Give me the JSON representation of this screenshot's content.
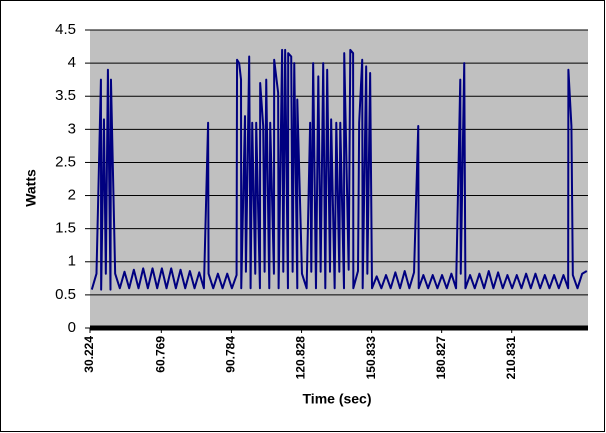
{
  "chart_data": {
    "type": "line",
    "xlabel": "Time (sec)",
    "ylabel": "Watts",
    "x": [
      31,
      33,
      34.9,
      35,
      36.2,
      37,
      37.9,
      39,
      39.2,
      41,
      43,
      45,
      47,
      49,
      51,
      53,
      55,
      57,
      59,
      61,
      63,
      65,
      67,
      69,
      71,
      73,
      75,
      77,
      79,
      80.8,
      81,
      83,
      85,
      87,
      89,
      91,
      93,
      93.2,
      94.1,
      94.9,
      95,
      96.6,
      97,
      98.4,
      99,
      99.7,
      101,
      101.4,
      103,
      103.1,
      104.4,
      105,
      105.7,
      107,
      107.4,
      109,
      109.1,
      110.8,
      111,
      112.5,
      113,
      113.8,
      115,
      115.1,
      116.4,
      117,
      117.7,
      119,
      119.0,
      121,
      123,
      124.5,
      125,
      125.8,
      127,
      128.0,
      129,
      130.1,
      131,
      131.8,
      133,
      133.5,
      135,
      135.7,
      137,
      137.4,
      139,
      139.1,
      141,
      141.7,
      142.9,
      143,
      145,
      145.5,
      146.8,
      147,
      148.5,
      149,
      150.2,
      151,
      153,
      155,
      157,
      159,
      161,
      163,
      165,
      167,
      169,
      170.8,
      171,
      173,
      175,
      177,
      179,
      181,
      183,
      185,
      187,
      188.8,
      189,
      190.5,
      191,
      193,
      195,
      197,
      199,
      201,
      203,
      205,
      207,
      209,
      211,
      213,
      215,
      217,
      219,
      221,
      223,
      225,
      227,
      229,
      231,
      233,
      235,
      235.1,
      236.4,
      237,
      239,
      241,
      243
    ],
    "series": [
      {
        "name": "Watts",
        "color": "#000080",
        "values": [
          0.58,
          0.82,
          3.75,
          0.58,
          3.15,
          0.82,
          3.9,
          0.58,
          3.75,
          0.82,
          0.6,
          0.85,
          0.6,
          0.88,
          0.6,
          0.9,
          0.6,
          0.9,
          0.6,
          0.9,
          0.6,
          0.9,
          0.6,
          0.88,
          0.6,
          0.86,
          0.6,
          0.84,
          0.6,
          3.1,
          0.82,
          0.6,
          0.82,
          0.6,
          0.82,
          0.6,
          0.8,
          4.05,
          4.0,
          3.75,
          0.6,
          3.2,
          0.85,
          4.1,
          0.6,
          3.1,
          0.82,
          3.1,
          0.6,
          3.7,
          3.05,
          0.85,
          3.75,
          0.6,
          3.1,
          0.82,
          4.05,
          3.55,
          0.6,
          4.2,
          0.85,
          4.2,
          0.6,
          4.15,
          4.1,
          0.85,
          4.0,
          0.6,
          3.45,
          0.82,
          0.6,
          3.1,
          0.85,
          4.0,
          0.6,
          3.8,
          0.85,
          4.0,
          0.6,
          3.9,
          0.85,
          3.15,
          0.6,
          3.1,
          0.85,
          3.1,
          0.6,
          4.15,
          0.88,
          4.2,
          4.15,
          0.6,
          0.86,
          3.1,
          4.05,
          0.6,
          3.95,
          0.82,
          3.85,
          0.6,
          0.78,
          0.6,
          0.8,
          0.6,
          0.84,
          0.6,
          0.86,
          0.6,
          0.84,
          3.05,
          0.6,
          0.8,
          0.6,
          0.8,
          0.6,
          0.8,
          0.6,
          0.82,
          0.6,
          3.75,
          0.82,
          4.0,
          0.6,
          0.8,
          0.6,
          0.82,
          0.6,
          0.86,
          0.6,
          0.84,
          0.6,
          0.8,
          0.6,
          0.8,
          0.6,
          0.82,
          0.6,
          0.82,
          0.6,
          0.8,
          0.6,
          0.8,
          0.6,
          0.8,
          0.6,
          3.9,
          3.05,
          0.8,
          0.6,
          0.82,
          0.86
        ]
      }
    ],
    "xlim": [
      30.224,
      243.5
    ],
    "xticks": [
      30.224,
      60.769,
      90.784,
      120.828,
      150.833,
      180.827,
      210.831
    ],
    "ylim": [
      0,
      4.5
    ],
    "yticks": [
      0,
      0.5,
      1,
      1.5,
      2,
      2.5,
      3,
      3.5,
      4,
      4.5
    ],
    "grid": true
  }
}
